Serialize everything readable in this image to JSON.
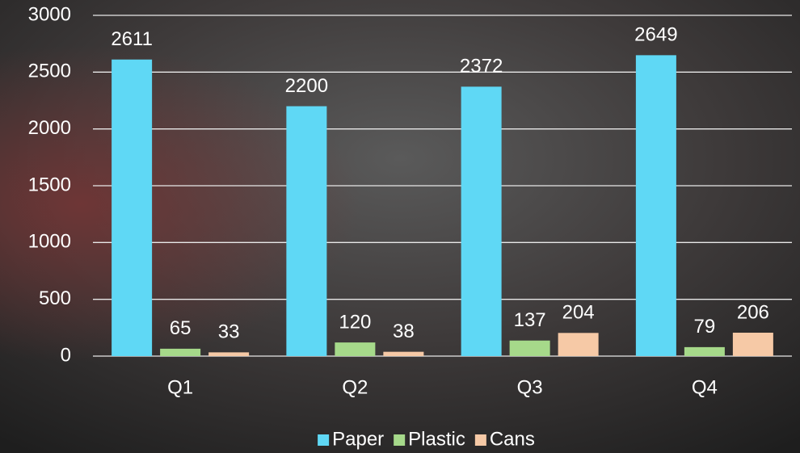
{
  "chart_data": {
    "type": "bar",
    "categories": [
      "Q1",
      "Q2",
      "Q3",
      "Q4"
    ],
    "series": [
      {
        "name": "Paper",
        "color": "#5fd8f5",
        "values": [
          2611,
          2200,
          2372,
          2649
        ]
      },
      {
        "name": "Plastic",
        "color": "#a6d98a",
        "values": [
          65,
          120,
          137,
          79
        ]
      },
      {
        "name": "Cans",
        "color": "#f6c9a6",
        "values": [
          33,
          38,
          204,
          206
        ]
      }
    ],
    "ylim": [
      0,
      3000
    ],
    "yticks": [
      0,
      500,
      1000,
      1500,
      2000,
      2500,
      3000
    ],
    "grid": true,
    "legend": "bottom"
  }
}
